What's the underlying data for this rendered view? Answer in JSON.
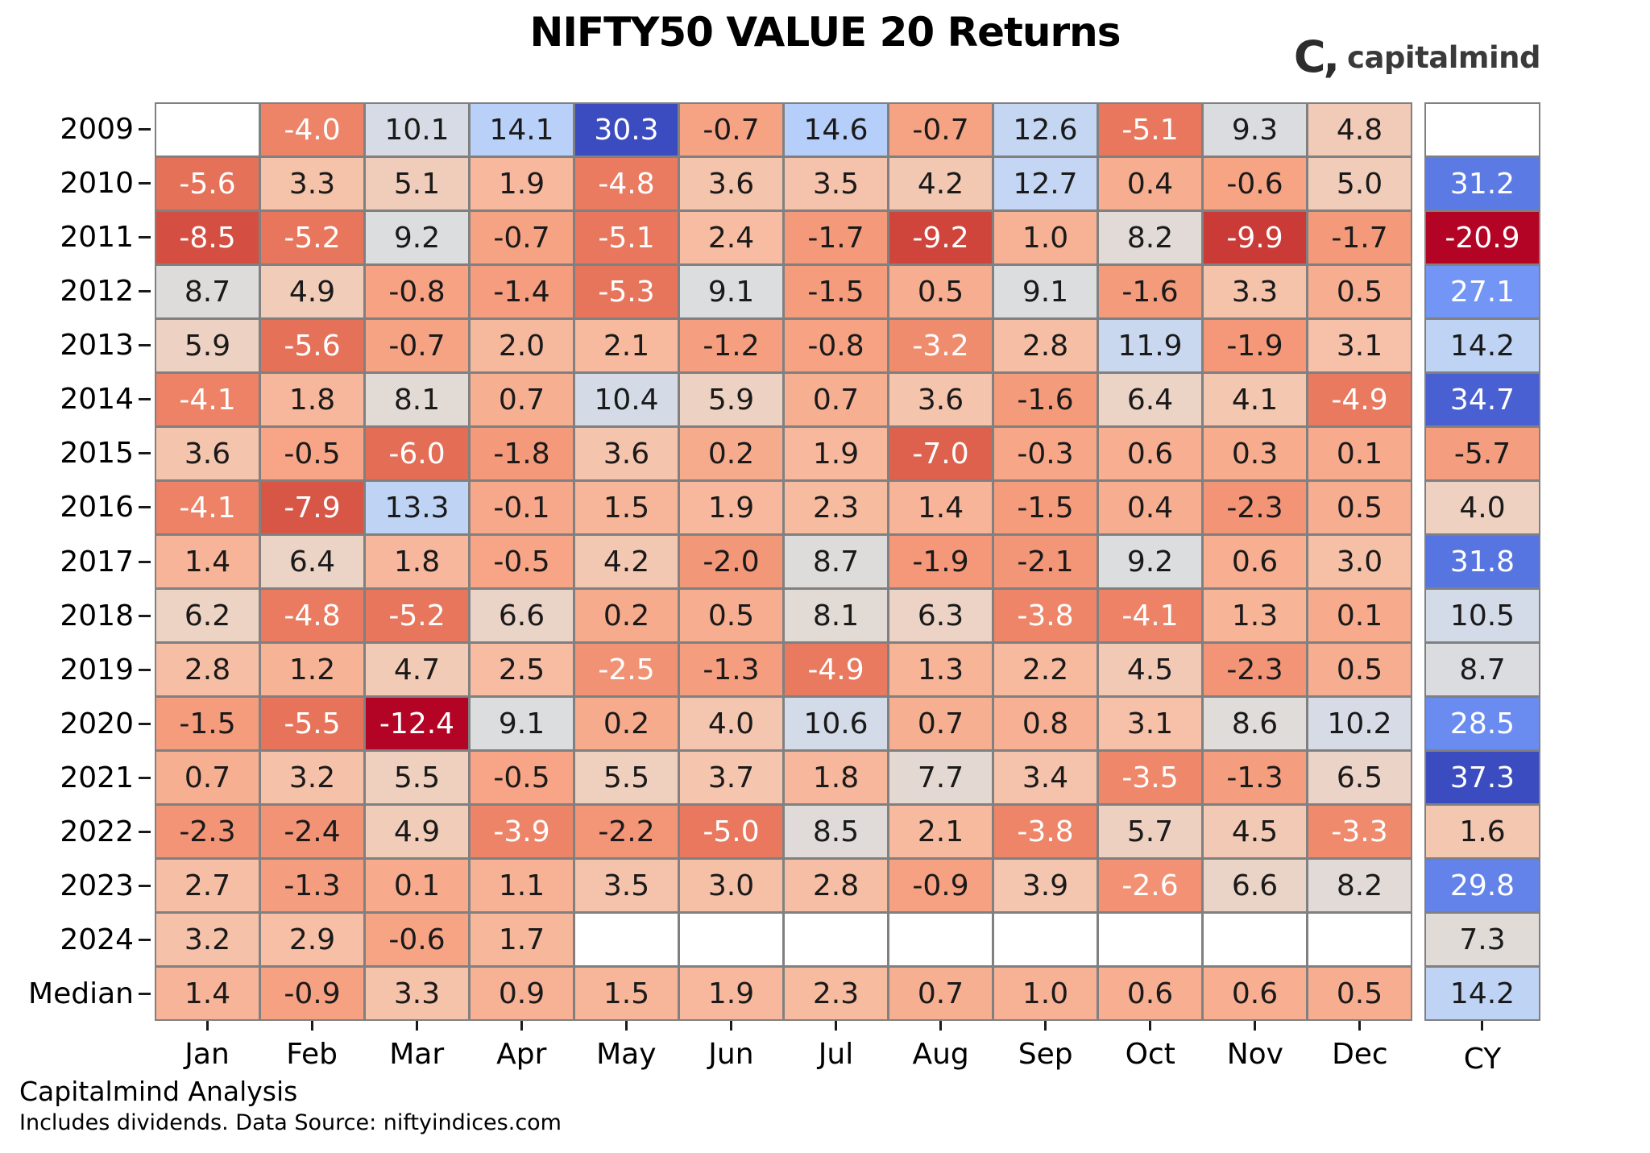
{
  "title": "NIFTY50 VALUE 20 Returns",
  "logo": {
    "mark": "C,",
    "text": "capitalmind"
  },
  "footer": {
    "line1": "Capitalmind Analysis",
    "line2": "Includes dividends. Data Source: niftyindices.com"
  },
  "chart_data": {
    "type": "heatmap",
    "title": "NIFTY50 VALUE 20 Returns",
    "x_labels": [
      "Jan",
      "Feb",
      "Mar",
      "Apr",
      "May",
      "Jun",
      "Jul",
      "Aug",
      "Sep",
      "Oct",
      "Nov",
      "Dec"
    ],
    "cy_label": "CY",
    "y_labels": [
      "2009",
      "2010",
      "2011",
      "2012",
      "2013",
      "2014",
      "2015",
      "2016",
      "2017",
      "2018",
      "2019",
      "2020",
      "2021",
      "2022",
      "2023",
      "2024",
      "Median"
    ],
    "monthly_values": [
      [
        null,
        -4.0,
        10.1,
        14.1,
        30.3,
        -0.7,
        14.6,
        -0.7,
        12.6,
        -5.1,
        9.3,
        4.8
      ],
      [
        -5.6,
        3.3,
        5.1,
        1.9,
        -4.8,
        3.6,
        3.5,
        4.2,
        12.7,
        0.4,
        -0.6,
        5.0
      ],
      [
        -8.5,
        -5.2,
        9.2,
        -0.7,
        -5.1,
        2.4,
        -1.7,
        -9.2,
        1.0,
        8.2,
        -9.9,
        -1.7
      ],
      [
        8.7,
        4.9,
        -0.8,
        -1.4,
        -5.3,
        9.1,
        -1.5,
        0.5,
        9.1,
        -1.6,
        3.3,
        0.5
      ],
      [
        5.9,
        -5.6,
        -0.7,
        2.0,
        2.1,
        -1.2,
        -0.8,
        -3.2,
        2.8,
        11.9,
        -1.9,
        3.1
      ],
      [
        -4.1,
        1.8,
        8.1,
        0.7,
        10.4,
        5.9,
        0.7,
        3.6,
        -1.6,
        6.4,
        4.1,
        -4.9
      ],
      [
        3.6,
        -0.5,
        -6.0,
        -1.8,
        3.6,
        0.2,
        1.9,
        -7.0,
        -0.3,
        0.6,
        0.3,
        0.1
      ],
      [
        -4.1,
        -7.9,
        13.3,
        -0.1,
        1.5,
        1.9,
        2.3,
        1.4,
        -1.5,
        0.4,
        -2.3,
        0.5
      ],
      [
        1.4,
        6.4,
        1.8,
        -0.5,
        4.2,
        -2.0,
        8.7,
        -1.9,
        -2.1,
        9.2,
        0.6,
        3.0
      ],
      [
        6.2,
        -4.8,
        -5.2,
        6.6,
        0.2,
        0.5,
        8.1,
        6.3,
        -3.8,
        -4.1,
        1.3,
        0.1
      ],
      [
        2.8,
        1.2,
        4.7,
        2.5,
        -2.5,
        -1.3,
        -4.9,
        1.3,
        2.2,
        4.5,
        -2.3,
        0.5
      ],
      [
        -1.5,
        -5.5,
        -12.4,
        9.1,
        0.2,
        4.0,
        10.6,
        0.7,
        0.8,
        3.1,
        8.6,
        10.2
      ],
      [
        0.7,
        3.2,
        5.5,
        -0.5,
        5.5,
        3.7,
        1.8,
        7.7,
        3.4,
        -3.5,
        -1.3,
        6.5
      ],
      [
        -2.3,
        -2.4,
        4.9,
        -3.9,
        -2.2,
        -5.0,
        8.5,
        2.1,
        -3.8,
        5.7,
        4.5,
        -3.3
      ],
      [
        2.7,
        -1.3,
        0.1,
        1.1,
        3.5,
        3.0,
        2.8,
        -0.9,
        3.9,
        -2.6,
        6.6,
        8.2
      ],
      [
        3.2,
        2.9,
        -0.6,
        1.7,
        null,
        null,
        null,
        null,
        null,
        null,
        null,
        null
      ],
      [
        1.4,
        -0.9,
        3.3,
        0.9,
        1.5,
        1.9,
        2.3,
        0.7,
        1.0,
        0.6,
        0.6,
        0.5
      ]
    ],
    "cy_values": [
      null,
      31.2,
      -20.9,
      27.1,
      14.2,
      34.7,
      -5.7,
      4.0,
      31.8,
      10.5,
      8.7,
      28.5,
      37.3,
      1.6,
      29.8,
      7.3,
      14.2
    ],
    "monthly_domain": [
      -12.4,
      30.3
    ],
    "cy_domain": [
      -20.9,
      37.3
    ],
    "value_format_decimals": 1,
    "colormap": "coolwarm (blue = high, red = low)",
    "colormap_stops": [
      "#3B4CC0",
      "#445ACC",
      "#4D68D7",
      "#5775E1",
      "#6282EA",
      "#6C8EF1",
      "#779AF7",
      "#82A5FB",
      "#8DB0FE",
      "#98B9FF",
      "#A3C2FF",
      "#AEC9FD",
      "#B8D0F9",
      "#C2D5F4",
      "#CCD9EE",
      "#D5DBE6",
      "#DDDDDD",
      "#E5D8D1",
      "#ECD3C5",
      "#F1CCB9",
      "#F5C4AD",
      "#F7BBA0",
      "#F7B194",
      "#F7A687",
      "#F49A7B",
      "#F18D6F",
      "#EC7F63",
      "#E57058",
      "#DE604D",
      "#D55042",
      "#CB3E38",
      "#C0282F",
      "#B40426"
    ],
    "grid_line_color": "#808080",
    "empty_cell_color": "#ffffff",
    "text_color_dark": "#1a1a1a",
    "text_color_light": "#ffffff",
    "luminance_threshold": 0.674,
    "legend": "none",
    "layout": "17 rows x 12 month columns, separate CY (calendar year) column on right"
  }
}
